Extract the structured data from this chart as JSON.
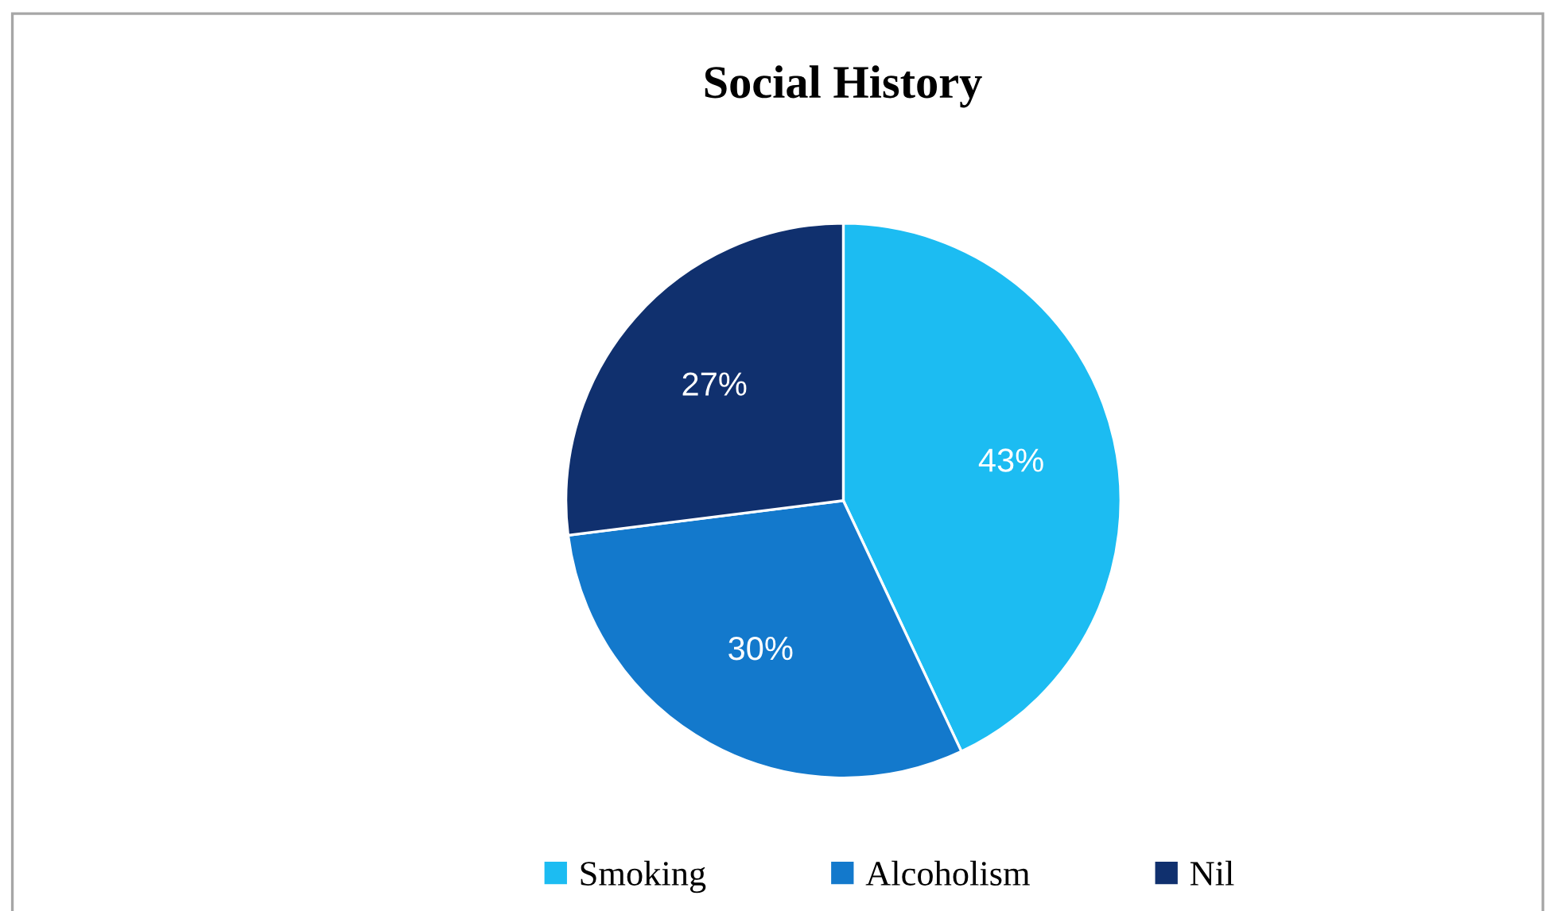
{
  "chart_data": {
    "type": "pie",
    "title": "Social History",
    "categories": [
      "Smoking",
      "Alcoholism",
      "Nil"
    ],
    "values": [
      43,
      30,
      27
    ],
    "colors": [
      "#1cbcf2",
      "#1379cc",
      "#10306e"
    ],
    "value_labels": [
      "43%",
      "30%",
      "27%"
    ],
    "legend": "bottom"
  }
}
